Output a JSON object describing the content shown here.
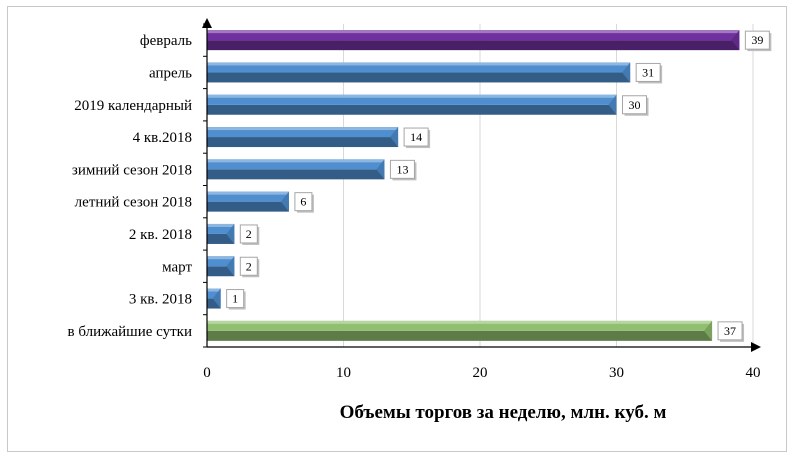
{
  "chart_data": {
    "type": "bar",
    "orientation": "horizontal",
    "categories": [
      "февраль",
      "апрель",
      "2019 календарный",
      "4 кв.2018",
      "зимний сезон 2018",
      "летний сезон 2018",
      "2 кв. 2018",
      "март",
      "3 кв. 2018",
      "в ближайшие сутки"
    ],
    "values": [
      39,
      31,
      30,
      14,
      13,
      6,
      2,
      2,
      1,
      37
    ],
    "data_labels": [
      "39",
      "31",
      "30",
      "14",
      "13",
      "6",
      "2",
      "2",
      "1",
      "37"
    ],
    "bar_colors": [
      "#7030a0",
      "#4f8fd0",
      "#4f8fd0",
      "#4f8fd0",
      "#4f8fd0",
      "#4f8fd0",
      "#4f8fd0",
      "#4f8fd0",
      "#4f8fd0",
      "#8fbf6f"
    ],
    "xlim": [
      0,
      40
    ],
    "xticks": [
      0,
      10,
      20,
      30,
      40
    ],
    "xlabel": "Объемы торгов за неделю, млн. куб. м",
    "grid": true
  }
}
